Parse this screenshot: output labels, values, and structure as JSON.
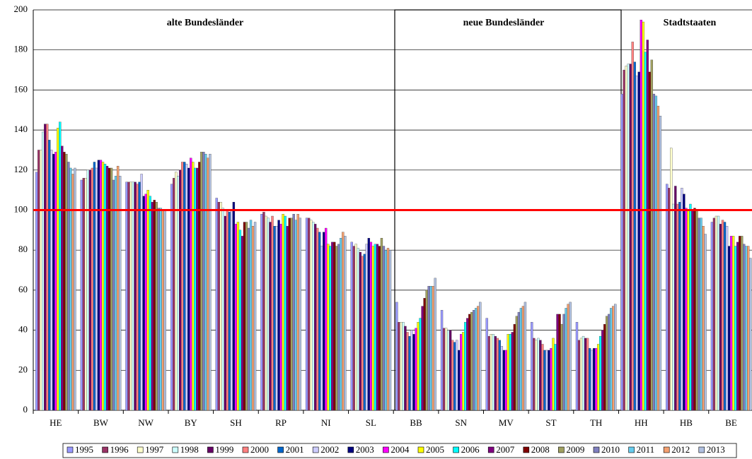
{
  "chart_data": {
    "type": "bar",
    "categories": [
      "HE",
      "BW",
      "NW",
      "BY",
      "SH",
      "RP",
      "NI",
      "SL",
      "BB",
      "SN",
      "MV",
      "ST",
      "TH",
      "HH",
      "HB",
      "BE"
    ],
    "ylim": [
      0,
      200
    ],
    "yticks": [
      0,
      20,
      40,
      60,
      80,
      100,
      120,
      140,
      160,
      180,
      200
    ],
    "grid": true,
    "reference_line": {
      "value": 100,
      "color": "#ff0000"
    },
    "annotations": [
      "alte Bundesländer",
      "neue Bundesländer",
      "Stadtstaaten"
    ],
    "legend": "bottom",
    "series": [
      {
        "name": "1995",
        "color": "#9999ff",
        "values": [
          119,
          115,
          114,
          113,
          106,
          98,
          96,
          84,
          54,
          50,
          46,
          44,
          44,
          158,
          113,
          94
        ]
      },
      {
        "name": "1996",
        "color": "#993366",
        "values": [
          130,
          116,
          114,
          116,
          104,
          99,
          96,
          82,
          44,
          41,
          37,
          36,
          35,
          170,
          111,
          96
        ]
      },
      {
        "name": "1997",
        "color": "#ffffcc",
        "values": [
          130,
          116,
          114,
          119,
          104,
          97,
          95,
          83,
          44,
          41,
          38,
          35,
          36,
          172,
          131,
          97
        ]
      },
      {
        "name": "1998",
        "color": "#ccffff",
        "values": [
          139,
          120,
          114,
          117,
          101,
          96,
          94,
          81,
          44,
          40,
          38,
          36,
          37,
          173,
          103,
          97
        ]
      },
      {
        "name": "1999",
        "color": "#660066",
        "values": [
          143,
          120,
          114,
          120,
          97,
          94,
          93,
          79,
          42,
          40,
          37,
          35,
          36,
          173,
          112,
          93
        ]
      },
      {
        "name": "2000",
        "color": "#ff8080",
        "values": [
          143,
          121,
          113,
          124,
          100,
          97,
          91,
          77,
          39,
          35,
          36,
          33,
          36,
          184,
          103,
          95
        ]
      },
      {
        "name": "2001",
        "color": "#0066cc",
        "values": [
          135,
          124,
          114,
          124,
          99,
          92,
          89,
          78,
          37,
          34,
          35,
          30,
          31,
          174,
          104,
          94
        ]
      },
      {
        "name": "2002",
        "color": "#ccccff",
        "values": [
          130,
          121,
          118,
          123,
          100,
          92,
          82,
          83,
          40,
          35,
          32,
          30,
          30,
          167,
          111,
          92
        ]
      },
      {
        "name": "2003",
        "color": "#000080",
        "values": [
          128,
          125,
          107,
          121,
          104,
          95,
          89,
          86,
          38,
          30,
          30,
          30,
          31,
          169,
          108,
          82
        ]
      },
      {
        "name": "2004",
        "color": "#ff00ff",
        "values": [
          129,
          125,
          108,
          126,
          93,
          93,
          91,
          84,
          41,
          38,
          30,
          31,
          31,
          195,
          101,
          87
        ]
      },
      {
        "name": "2005",
        "color": "#ffff00",
        "values": [
          141,
          124,
          110,
          124,
          94,
          98,
          83,
          82,
          44,
          39,
          38,
          36,
          33,
          194,
          100,
          87
        ]
      },
      {
        "name": "2006",
        "color": "#00ffff",
        "values": [
          144,
          123,
          107,
          121,
          90,
          97,
          82,
          83,
          46,
          44,
          38,
          33,
          37,
          179,
          103,
          82
        ]
      },
      {
        "name": "2007",
        "color": "#800080",
        "values": [
          132,
          122,
          104,
          121,
          87,
          92,
          84,
          83,
          52,
          46,
          39,
          48,
          40,
          185,
          100,
          84
        ]
      },
      {
        "name": "2008",
        "color": "#800000",
        "values": [
          129,
          121,
          105,
          124,
          94,
          96,
          84,
          82,
          56,
          48,
          43,
          48,
          43,
          169,
          101,
          87
        ]
      },
      {
        "name": "2009",
        "color": "#a0a060",
        "values": [
          128,
          121,
          104,
          129,
          94,
          96,
          82,
          86,
          60,
          49,
          47,
          43,
          47,
          175,
          100,
          87
        ]
      },
      {
        "name": "2010",
        "color": "#8080c0",
        "values": [
          124,
          115,
          101,
          129,
          91,
          98,
          83,
          82,
          62,
          50,
          49,
          48,
          48,
          158,
          96,
          83
        ]
      },
      {
        "name": "2011",
        "color": "#66ccee",
        "values": [
          121,
          117,
          101,
          128,
          95,
          95,
          86,
          80,
          62,
          51,
          51,
          51,
          51,
          157,
          96,
          82
        ]
      },
      {
        "name": "2012",
        "color": "#f4a070",
        "values": [
          118,
          122,
          100,
          126,
          92,
          98,
          89,
          81,
          62,
          52,
          52,
          53,
          52,
          152,
          92,
          82
        ]
      },
      {
        "name": "2013",
        "color": "#b0c0e0",
        "values": [
          121,
          117,
          100,
          128,
          94,
          96,
          87,
          80,
          66,
          54,
          54,
          54,
          53,
          147,
          88,
          76
        ]
      }
    ]
  }
}
